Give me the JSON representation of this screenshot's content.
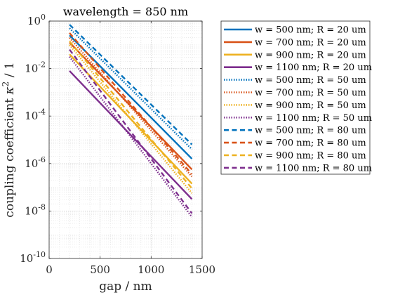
{
  "chart_data": {
    "type": "line",
    "title": "wavelength = 850 nm",
    "xlabel": "gap / nm",
    "ylabel_parts": [
      "coupling coefficient ",
      "κ",
      "2",
      " / 1"
    ],
    "xlim": [
      0,
      1500
    ],
    "ylim_log10": [
      -10,
      0
    ],
    "y_scale": "log",
    "grid": "major and minor, dotted",
    "legend_position": "outside right",
    "x_ticks": [
      0,
      500,
      1000,
      1500
    ],
    "x_tick_labels": [
      "0",
      "500",
      "1000",
      "1500"
    ],
    "y_tick_exponents": [
      -10,
      -8,
      -6,
      -4,
      -2,
      0
    ],
    "y_tick_labels": [
      {
        "base": "10",
        "exp": "-10"
      },
      {
        "base": "10",
        "exp": "-8"
      },
      {
        "base": "10",
        "exp": "-6"
      },
      {
        "base": "10",
        "exp": "-4"
      },
      {
        "base": "10",
        "exp": "-2"
      },
      {
        "base": "10",
        "exp": "0"
      }
    ],
    "x": [
      200,
      1400
    ],
    "series": [
      {
        "name": "w = 500 nm; R = 20 um",
        "color": "#0072BD",
        "style": "solid",
        "log10_y": [
          -0.6,
          -5.8
        ]
      },
      {
        "name": "w = 700 nm; R = 20 um",
        "color": "#D95319",
        "style": "solid",
        "log10_y": [
          -0.9,
          -6.25
        ]
      },
      {
        "name": "w = 900 nm; R = 20 um",
        "color": "#EDB120",
        "style": "solid",
        "log10_y": [
          -1.4,
          -6.85
        ]
      },
      {
        "name": "w = 1100 nm; R = 20 um",
        "color": "#7E2F8E",
        "style": "solid",
        "log10_y": [
          -2.1,
          -7.5
        ]
      },
      {
        "name": "w = 500 nm; R = 50 um",
        "color": "#0072BD",
        "style": "dotted",
        "log10_y": [
          -0.3,
          -5.4
        ]
      },
      {
        "name": "w = 700 nm; R = 50 um",
        "color": "#D95319",
        "style": "dotted",
        "log10_y": [
          -0.7,
          -6.55
        ]
      },
      {
        "name": "w = 900 nm; R = 50 um",
        "color": "#EDB120",
        "style": "dotted",
        "log10_y": [
          -1.0,
          -7.25
        ]
      },
      {
        "name": "w = 1100 nm; R = 50 um",
        "color": "#7E2F8E",
        "style": "dotted",
        "log10_y": [
          -1.5,
          -8.25
        ]
      },
      {
        "name": "w = 500 nm; R = 80 um",
        "color": "#0072BD",
        "style": "dashed",
        "log10_y": [
          -0.15,
          -5.2
        ]
      },
      {
        "name": "w = 700 nm; R = 80 um",
        "color": "#D95319",
        "style": "dashed",
        "log10_y": [
          -0.5,
          -6.45
        ]
      },
      {
        "name": "w = 900 nm; R = 80 um",
        "color": "#EDB120",
        "style": "dashed",
        "log10_y": [
          -0.85,
          -7.05
        ]
      },
      {
        "name": "w = 1100 nm; R = 80 um",
        "color": "#7E2F8E",
        "style": "dashed",
        "log10_y": [
          -1.2,
          -8.1
        ]
      }
    ]
  }
}
